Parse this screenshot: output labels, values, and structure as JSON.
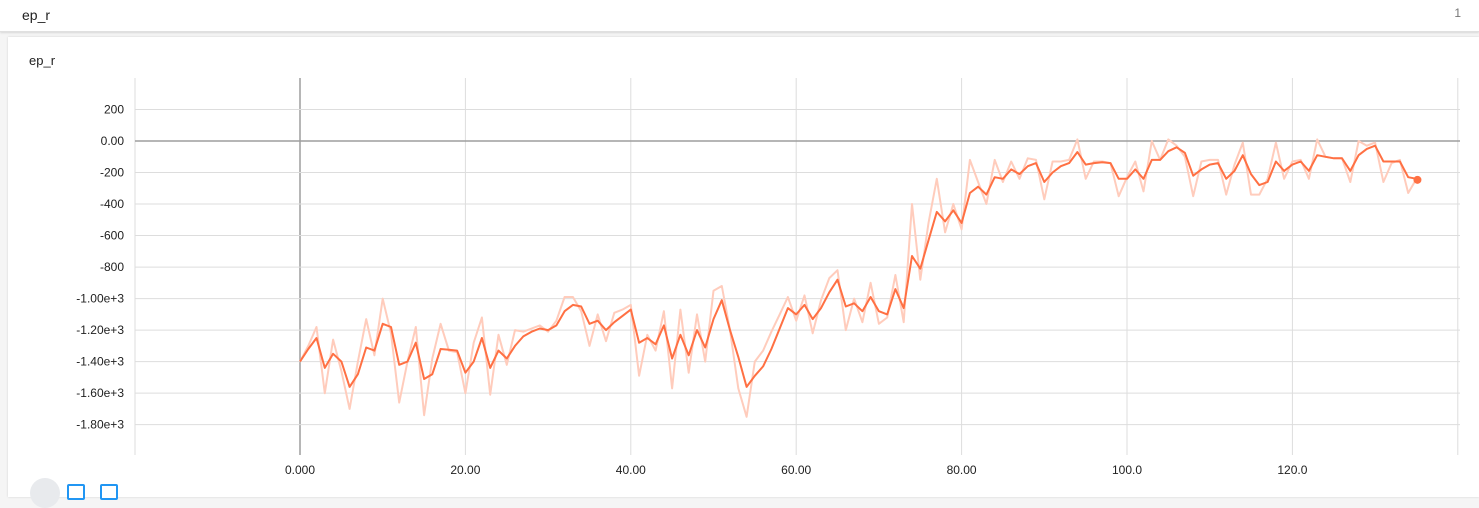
{
  "header": {
    "title": "ep_r",
    "count": "1"
  },
  "card": {
    "title": "ep_r"
  },
  "colors": {
    "line": "#ff7043",
    "line_raw": "#ffccbc",
    "grid": "#dddddd",
    "zero_axis": "#9e9e9e"
  },
  "chart_data": {
    "type": "line",
    "title": "ep_r",
    "xlabel": "",
    "ylabel": "",
    "xlim": [
      -20,
      140
    ],
    "ylim": [
      -2000,
      400
    ],
    "x_ticks": [
      0,
      20,
      40,
      60,
      80,
      100,
      120
    ],
    "x_tick_labels": [
      "0.000",
      "20.00",
      "40.00",
      "60.00",
      "80.00",
      "100.0",
      "120.0"
    ],
    "y_ticks": [
      200,
      0,
      -200,
      -400,
      -600,
      -800,
      -1000,
      -1200,
      -1400,
      -1600,
      -1800
    ],
    "y_tick_labels": [
      "200",
      "0.00",
      "-200",
      "-400",
      "-600",
      "-800",
      "-1.00e+3",
      "-1.20e+3",
      "-1.40e+3",
      "-1.60e+3",
      "-1.80e+3"
    ],
    "grid": true,
    "series": [
      {
        "role": "smoothed",
        "x": [
          0,
          1,
          2,
          3,
          4,
          5,
          6,
          7,
          8,
          9,
          10,
          11,
          12,
          13,
          14,
          15,
          16,
          17,
          18,
          19,
          20,
          21,
          22,
          23,
          24,
          25,
          26,
          27,
          28,
          29,
          30,
          31,
          32,
          33,
          34,
          35,
          36,
          37,
          38,
          39,
          40,
          41,
          42,
          43,
          44,
          45,
          46,
          47,
          48,
          49,
          50,
          51,
          52,
          53,
          54,
          55,
          56,
          57,
          58,
          59,
          60,
          61,
          62,
          63,
          64,
          65,
          66,
          67,
          68,
          69,
          70,
          71,
          72,
          73,
          74,
          75,
          76,
          77,
          78,
          79,
          80,
          81,
          82,
          83,
          84,
          85,
          86,
          87,
          88,
          89,
          90,
          91,
          92,
          93,
          94,
          95,
          96,
          97,
          98,
          99,
          100,
          101,
          102,
          103,
          104,
          105,
          106,
          107,
          108,
          109,
          110,
          111,
          112,
          113,
          114,
          115,
          116,
          117,
          118,
          119,
          120,
          121,
          122,
          123,
          124,
          125,
          126,
          127,
          128,
          129,
          130,
          131,
          132,
          133,
          134,
          135
        ],
        "y": [
          -1400,
          -1320,
          -1250,
          -1440,
          -1350,
          -1400,
          -1560,
          -1480,
          -1310,
          -1330,
          -1160,
          -1180,
          -1420,
          -1400,
          -1280,
          -1510,
          -1480,
          -1320,
          -1325,
          -1330,
          -1470,
          -1400,
          -1250,
          -1440,
          -1330,
          -1380,
          -1300,
          -1240,
          -1210,
          -1190,
          -1200,
          -1170,
          -1080,
          -1040,
          -1050,
          -1160,
          -1140,
          -1200,
          -1150,
          -1110,
          -1070,
          -1280,
          -1250,
          -1290,
          -1170,
          -1380,
          -1230,
          -1360,
          -1200,
          -1310,
          -1130,
          -1010,
          -1200,
          -1370,
          -1560,
          -1490,
          -1430,
          -1320,
          -1190,
          -1060,
          -1100,
          -1040,
          -1130,
          -1060,
          -960,
          -880,
          -1050,
          -1030,
          -1080,
          -990,
          -1080,
          -1100,
          -940,
          -1060,
          -730,
          -810,
          -630,
          -450,
          -510,
          -440,
          -520,
          -330,
          -290,
          -340,
          -230,
          -240,
          -180,
          -210,
          -160,
          -140,
          -260,
          -200,
          -160,
          -140,
          -70,
          -150,
          -140,
          -135,
          -140,
          -240,
          -240,
          -180,
          -240,
          -120,
          -120,
          -65,
          -40,
          -75,
          -220,
          -180,
          -150,
          -140,
          -240,
          -190,
          -90,
          -210,
          -280,
          -260,
          -130,
          -190,
          -150,
          -130,
          -190,
          -90,
          -100,
          -110,
          -110,
          -190,
          -90,
          -50,
          -30,
          -130,
          -130,
          -130,
          -230,
          -240
        ]
      },
      {
        "role": "raw",
        "x": [
          0,
          1,
          2,
          3,
          4,
          5,
          6,
          7,
          8,
          9,
          10,
          11,
          12,
          13,
          14,
          15,
          16,
          17,
          18,
          19,
          20,
          21,
          22,
          23,
          24,
          25,
          26,
          27,
          28,
          29,
          30,
          31,
          32,
          33,
          34,
          35,
          36,
          37,
          38,
          39,
          40,
          41,
          42,
          43,
          44,
          45,
          46,
          47,
          48,
          49,
          50,
          51,
          52,
          53,
          54,
          55,
          56,
          57,
          58,
          59,
          60,
          61,
          62,
          63,
          64,
          65,
          66,
          67,
          68,
          69,
          70,
          71,
          72,
          73,
          74,
          75,
          76,
          77,
          78,
          79,
          80,
          81,
          82,
          83,
          84,
          85,
          86,
          87,
          88,
          89,
          90,
          91,
          92,
          93,
          94,
          95,
          96,
          97,
          98,
          99,
          100,
          101,
          102,
          103,
          104,
          105,
          106,
          107,
          108,
          109,
          110,
          111,
          112,
          113,
          114,
          115,
          116,
          117,
          118,
          119,
          120,
          121,
          122,
          123,
          124,
          125,
          126,
          127,
          128,
          129,
          130,
          131,
          132,
          133,
          134,
          135
        ],
        "y": [
          -1400,
          -1300,
          -1180,
          -1600,
          -1260,
          -1460,
          -1700,
          -1400,
          -1130,
          -1360,
          -1000,
          -1220,
          -1660,
          -1400,
          -1180,
          -1740,
          -1380,
          -1160,
          -1330,
          -1340,
          -1600,
          -1280,
          -1120,
          -1610,
          -1230,
          -1420,
          -1200,
          -1210,
          -1190,
          -1170,
          -1210,
          -1140,
          -990,
          -990,
          -1080,
          -1300,
          -1100,
          -1270,
          -1090,
          -1070,
          -1040,
          -1490,
          -1230,
          -1330,
          -1080,
          -1570,
          -1070,
          -1470,
          -1100,
          -1400,
          -950,
          -920,
          -1200,
          -1570,
          -1750,
          -1400,
          -1330,
          -1210,
          -1100,
          -990,
          -1140,
          -980,
          -1220,
          -1010,
          -870,
          -820,
          -1200,
          -1000,
          -1150,
          -900,
          -1160,
          -1120,
          -850,
          -1150,
          -400,
          -880,
          -520,
          -240,
          -580,
          -400,
          -560,
          -120,
          -260,
          -400,
          -120,
          -260,
          -130,
          -240,
          -110,
          -120,
          -370,
          -130,
          -130,
          -120,
          10,
          -240,
          -130,
          -130,
          -140,
          -350,
          -230,
          -130,
          -320,
          0,
          -120,
          10,
          -30,
          -100,
          -350,
          -130,
          -120,
          -120,
          -340,
          -150,
          -10,
          -340,
          -340,
          -240,
          -10,
          -240,
          -130,
          -120,
          -240,
          10,
          -100,
          -110,
          -110,
          -260,
          0,
          -30,
          -10,
          -260,
          -140,
          -120,
          -330,
          -240
        ]
      }
    ]
  }
}
